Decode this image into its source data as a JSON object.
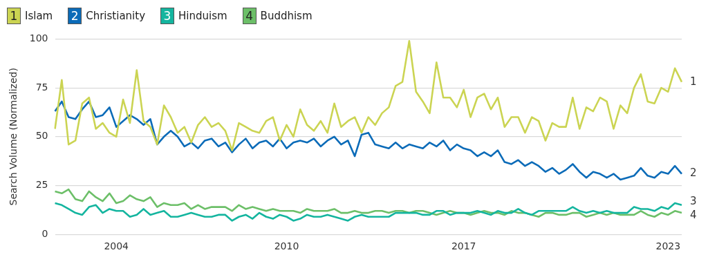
{
  "chart_data": {
    "type": "line",
    "ylabel": "Search Volume (Normalized)",
    "categories": [
      null,
      null,
      null,
      null,
      null,
      null,
      null,
      null,
      null,
      "2004",
      null,
      null,
      null,
      null,
      null,
      null,
      null,
      null,
      null,
      null,
      null,
      null,
      null,
      null,
      null,
      null,
      null,
      null,
      null,
      null,
      null,
      null,
      null,
      null,
      "2010",
      null,
      null,
      null,
      null,
      null,
      null,
      null,
      null,
      null,
      null,
      null,
      null,
      null,
      null,
      null,
      null,
      null,
      null,
      null,
      null,
      null,
      null,
      null,
      null,
      null,
      "2017",
      null,
      null,
      null,
      null,
      null,
      null,
      null,
      null,
      null,
      null,
      null,
      null,
      null,
      null,
      null,
      null,
      null,
      null,
      null,
      null,
      null,
      null,
      null,
      null,
      null,
      null,
      null,
      null,
      null,
      "2023",
      null,
      null
    ],
    "series": [
      {
        "name": "Islam",
        "color": "#cbd452",
        "values": [
          54,
          79,
          46,
          48,
          67,
          70,
          54,
          57,
          52,
          50,
          69,
          57,
          84,
          58,
          55,
          46,
          66,
          60,
          52,
          55,
          47,
          56,
          60,
          55,
          57,
          53,
          43,
          57,
          55,
          53,
          52,
          58,
          60,
          48,
          56,
          50,
          64,
          56,
          53,
          58,
          52,
          67,
          55,
          58,
          60,
          52,
          60,
          56,
          62,
          65,
          76,
          78,
          99,
          73,
          68,
          62,
          88,
          70,
          70,
          65,
          74,
          60,
          70,
          72,
          64,
          70,
          55,
          60,
          60,
          52,
          60,
          58,
          48,
          57,
          55,
          55,
          70,
          54,
          65,
          63,
          70,
          68,
          54,
          66,
          62,
          75,
          82,
          68,
          67,
          75,
          73,
          85,
          78
        ]
      },
      {
        "name": "Christianity",
        "color": "#0b6bb8",
        "values": [
          63,
          68,
          60,
          59,
          64,
          68,
          60,
          61,
          65,
          55,
          58,
          61,
          59,
          56,
          59,
          46,
          50,
          53,
          50,
          45,
          47,
          44,
          48,
          49,
          45,
          47,
          42,
          46,
          49,
          44,
          47,
          48,
          45,
          49,
          44,
          47,
          48,
          47,
          49,
          45,
          48,
          50,
          46,
          48,
          40,
          51,
          52,
          46,
          45,
          44,
          47,
          44,
          46,
          45,
          44,
          47,
          45,
          48,
          43,
          46,
          44,
          43,
          40,
          42,
          40,
          43,
          37,
          36,
          38,
          35,
          37,
          35,
          32,
          34,
          31,
          33,
          36,
          32,
          29,
          32,
          31,
          29,
          31,
          28,
          29,
          30,
          34,
          30,
          29,
          32,
          31,
          35,
          31
        ]
      },
      {
        "name": "Hinduism",
        "color": "#14b59f",
        "values": [
          16,
          15,
          13,
          11,
          10,
          14,
          15,
          11,
          13,
          12,
          12,
          9,
          10,
          13,
          10,
          11,
          12,
          9,
          9,
          10,
          11,
          10,
          9,
          9,
          10,
          10,
          7,
          9,
          10,
          8,
          11,
          9,
          8,
          10,
          9,
          7,
          8,
          10,
          9,
          9,
          10,
          9,
          8,
          7,
          9,
          10,
          9,
          9,
          9,
          9,
          11,
          11,
          11,
          11,
          10,
          10,
          12,
          12,
          10,
          11,
          11,
          11,
          12,
          11,
          10,
          12,
          11,
          11,
          13,
          11,
          10,
          12,
          12,
          12,
          12,
          12,
          14,
          12,
          11,
          12,
          11,
          12,
          11,
          11,
          11,
          14,
          13,
          13,
          12,
          14,
          13,
          16,
          15
        ]
      },
      {
        "name": "Buddhism",
        "color": "#6cbf68",
        "values": [
          22,
          21,
          23,
          18,
          17,
          22,
          19,
          17,
          21,
          16,
          17,
          20,
          18,
          17,
          19,
          14,
          16,
          15,
          15,
          16,
          13,
          15,
          13,
          14,
          14,
          14,
          12,
          15,
          13,
          14,
          13,
          12,
          13,
          12,
          12,
          12,
          11,
          13,
          12,
          12,
          12,
          13,
          11,
          11,
          12,
          11,
          11,
          12,
          12,
          11,
          12,
          12,
          11,
          12,
          12,
          11,
          10,
          11,
          12,
          11,
          11,
          10,
          11,
          12,
          11,
          11,
          10,
          12,
          11,
          11,
          10,
          9,
          11,
          11,
          10,
          10,
          11,
          11,
          9,
          10,
          11,
          10,
          11,
          10,
          10,
          10,
          12,
          10,
          9,
          11,
          10,
          12,
          11
        ]
      }
    ],
    "annotations": [
      "1",
      "2",
      "3",
      "4"
    ],
    "ylim": [
      0,
      100
    ],
    "yticks": [
      0,
      25,
      50,
      75,
      100
    ],
    "grid": "y",
    "legend": "top left"
  }
}
